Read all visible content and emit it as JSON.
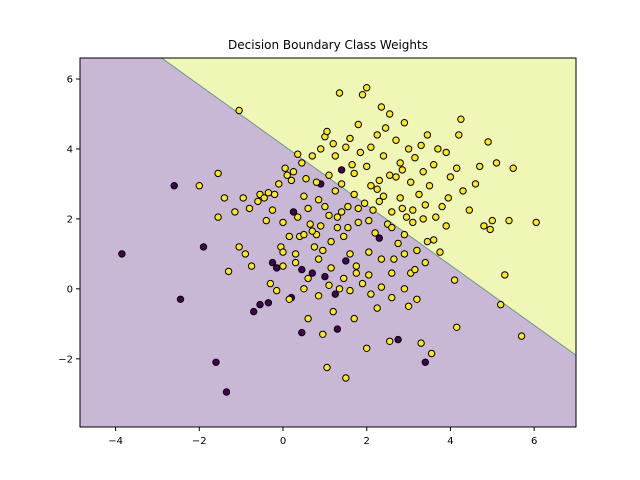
{
  "chart_data": {
    "type": "scatter",
    "title": "Decision Boundary Class Weights",
    "xlabel": "",
    "ylabel": "",
    "xlim": [
      -4.85,
      7.0
    ],
    "ylim": [
      -3.95,
      6.6
    ],
    "x_ticks": [
      -4,
      -2,
      0,
      2,
      4,
      6
    ],
    "y_ticks": [
      -2,
      0,
      2,
      4,
      6
    ],
    "grid": false,
    "legend": "none",
    "decision_boundary": {
      "line": [
        [
          -2.9,
          6.6
        ],
        [
          7.0,
          -1.9
        ]
      ],
      "region_below_color": "#c8b8d6",
      "region_above_color": "#eff6b6",
      "boundary_color": "#6b9a8c"
    },
    "series": [
      {
        "class": 0,
        "color": "#440154",
        "points": [
          [
            -3.85,
            1.0
          ],
          [
            -2.6,
            2.95
          ],
          [
            -2.45,
            -0.3
          ],
          [
            -1.9,
            1.2
          ],
          [
            -1.6,
            -2.1
          ],
          [
            -1.35,
            -2.95
          ],
          [
            -0.7,
            -0.65
          ],
          [
            -0.55,
            -0.45
          ],
          [
            -0.35,
            -0.4
          ],
          [
            -0.25,
            0.75
          ],
          [
            0.2,
            -0.25
          ],
          [
            0.25,
            2.2
          ],
          [
            0.45,
            0.55
          ],
          [
            -0.15,
            0.6
          ],
          [
            0.45,
            -1.25
          ],
          [
            0.7,
            0.45
          ],
          [
            0.9,
            3.0
          ],
          [
            1.0,
            0.35
          ],
          [
            1.3,
            -1.15
          ],
          [
            1.4,
            3.4
          ],
          [
            1.5,
            0.8
          ],
          [
            2.3,
            1.45
          ],
          [
            2.75,
            -1.45
          ],
          [
            3.4,
            -2.1
          ],
          [
            1.25,
            -0.15
          ]
        ]
      },
      {
        "class": 1,
        "color": "#fde725",
        "points": [
          [
            -1.05,
            5.1
          ],
          [
            -1.55,
            3.3
          ],
          [
            -2.0,
            2.95
          ],
          [
            -1.55,
            2.05
          ],
          [
            -1.4,
            2.6
          ],
          [
            -1.3,
            0.5
          ],
          [
            -1.15,
            2.2
          ],
          [
            -1.05,
            1.2
          ],
          [
            -0.95,
            2.6
          ],
          [
            -0.8,
            2.3
          ],
          [
            -0.9,
            1.0
          ],
          [
            -0.75,
            0.65
          ],
          [
            -0.6,
            2.5
          ],
          [
            -0.55,
            2.7
          ],
          [
            -0.45,
            2.6
          ],
          [
            -0.35,
            2.75
          ],
          [
            -0.4,
            1.95
          ],
          [
            -0.25,
            2.25
          ],
          [
            -0.2,
            2.7
          ],
          [
            -0.1,
            3.0
          ],
          [
            -0.05,
            1.2
          ],
          [
            0.0,
            1.05
          ],
          [
            0.05,
            3.45
          ],
          [
            0.1,
            3.25
          ],
          [
            0.15,
            1.5
          ],
          [
            0.2,
            3.1
          ],
          [
            0.25,
            3.35
          ],
          [
            0.3,
            1.0
          ],
          [
            0.35,
            3.85
          ],
          [
            0.4,
            1.5
          ],
          [
            0.45,
            3.6
          ],
          [
            0.5,
            1.55
          ],
          [
            0.55,
            3.15
          ],
          [
            0.6,
            2.3
          ],
          [
            0.65,
            1.85
          ],
          [
            0.7,
            3.8
          ],
          [
            0.75,
            1.2
          ],
          [
            0.8,
            1.55
          ],
          [
            0.85,
            2.55
          ],
          [
            0.9,
            1.8
          ],
          [
            0.95,
            1.1
          ],
          [
            1.0,
            4.35
          ],
          [
            1.05,
            4.5
          ],
          [
            1.1,
            2.1
          ],
          [
            1.15,
            1.35
          ],
          [
            1.2,
            4.15
          ],
          [
            1.25,
            2.8
          ],
          [
            1.3,
            1.75
          ],
          [
            1.35,
            5.6
          ],
          [
            1.4,
            2.2
          ],
          [
            1.45,
            1.5
          ],
          [
            1.5,
            4.05
          ],
          [
            1.55,
            2.35
          ],
          [
            1.6,
            1.0
          ],
          [
            1.65,
            3.55
          ],
          [
            1.7,
            2.7
          ],
          [
            1.75,
            0.65
          ],
          [
            1.8,
            1.9
          ],
          [
            1.85,
            3.9
          ],
          [
            1.9,
            5.55
          ],
          [
            1.95,
            2.45
          ],
          [
            2.0,
            5.75
          ],
          [
            2.05,
            0.4
          ],
          [
            2.1,
            2.95
          ],
          [
            2.15,
            2.25
          ],
          [
            2.2,
            1.6
          ],
          [
            2.25,
            4.4
          ],
          [
            2.3,
            3.1
          ],
          [
            2.35,
            5.2
          ],
          [
            2.4,
            2.65
          ],
          [
            2.45,
            4.6
          ],
          [
            2.5,
            1.85
          ],
          [
            2.55,
            5.0
          ],
          [
            2.6,
            2.2
          ],
          [
            2.65,
            0.85
          ],
          [
            2.7,
            3.2
          ],
          [
            2.75,
            1.3
          ],
          [
            2.8,
            2.6
          ],
          [
            2.85,
            3.4
          ],
          [
            2.9,
            1.55
          ],
          [
            2.95,
            2.05
          ],
          [
            3.0,
            4.0
          ],
          [
            3.05,
            0.45
          ],
          [
            3.1,
            2.25
          ],
          [
            3.15,
            3.75
          ],
          [
            3.2,
            1.1
          ],
          [
            3.25,
            2.7
          ],
          [
            3.3,
            4.1
          ],
          [
            3.35,
            2.0
          ],
          [
            3.4,
            0.75
          ],
          [
            3.5,
            2.95
          ],
          [
            3.6,
            1.4
          ],
          [
            3.7,
            4.0
          ],
          [
            3.8,
            2.35
          ],
          [
            3.9,
            1.8
          ],
          [
            4.0,
            3.2
          ],
          [
            4.1,
            0.25
          ],
          [
            4.2,
            4.4
          ],
          [
            4.25,
            4.85
          ],
          [
            4.3,
            2.8
          ],
          [
            4.45,
            2.25
          ],
          [
            4.6,
            3.0
          ],
          [
            4.7,
            3.5
          ],
          [
            4.8,
            1.8
          ],
          [
            4.9,
            4.2
          ],
          [
            5.0,
            1.95
          ],
          [
            5.1,
            3.6
          ],
          [
            5.2,
            -0.45
          ],
          [
            5.3,
            0.4
          ],
          [
            5.5,
            3.45
          ],
          [
            5.7,
            -1.35
          ],
          [
            6.05,
            1.9
          ],
          [
            5.4,
            1.95
          ],
          [
            4.95,
            1.7
          ],
          [
            3.55,
            -1.85
          ],
          [
            3.3,
            -1.55
          ],
          [
            2.55,
            -1.5
          ],
          [
            2.0,
            -1.7
          ],
          [
            1.5,
            -2.55
          ],
          [
            1.05,
            -2.25
          ],
          [
            4.15,
            -1.1
          ],
          [
            0.95,
            -1.3
          ],
          [
            0.15,
            -0.3
          ],
          [
            -0.3,
            0.15
          ],
          [
            0.5,
            0.0
          ],
          [
            0.85,
            -0.2
          ],
          [
            1.1,
            0.1
          ],
          [
            1.35,
            0.0
          ],
          [
            1.6,
            -0.05
          ],
          [
            1.9,
            0.15
          ],
          [
            2.1,
            -0.15
          ],
          [
            2.35,
            0.05
          ],
          [
            2.6,
            -0.25
          ],
          [
            2.9,
            0.0
          ],
          [
            3.2,
            -0.3
          ],
          [
            1.7,
            -0.85
          ],
          [
            2.25,
            -0.55
          ],
          [
            3.0,
            -0.5
          ],
          [
            0.6,
            -0.85
          ],
          [
            1.2,
            -0.65
          ],
          [
            -0.15,
            -0.05
          ],
          [
            0.0,
            0.65
          ],
          [
            0.3,
            0.75
          ],
          [
            0.6,
            0.3
          ],
          [
            0.85,
            0.85
          ],
          [
            1.15,
            0.6
          ],
          [
            1.45,
            0.3
          ],
          [
            1.75,
            0.45
          ],
          [
            2.05,
            1.05
          ],
          [
            2.35,
            0.85
          ],
          [
            2.6,
            0.45
          ],
          [
            2.9,
            1.0
          ],
          [
            3.15,
            0.55
          ],
          [
            3.45,
            1.35
          ],
          [
            3.75,
            1.05
          ],
          [
            0.0,
            1.9
          ],
          [
            0.35,
            2.05
          ],
          [
            0.7,
            1.65
          ],
          [
            1.0,
            2.35
          ],
          [
            1.3,
            2.05
          ],
          [
            1.55,
            1.75
          ],
          [
            1.8,
            2.3
          ],
          [
            2.05,
            1.95
          ],
          [
            2.3,
            2.5
          ],
          [
            2.6,
            1.75
          ],
          [
            2.85,
            2.3
          ],
          [
            3.1,
            1.9
          ],
          [
            3.4,
            2.4
          ],
          [
            3.65,
            2.05
          ],
          [
            3.95,
            2.6
          ],
          [
            0.5,
            2.65
          ],
          [
            0.8,
            3.05
          ],
          [
            1.1,
            3.25
          ],
          [
            1.4,
            3.0
          ],
          [
            1.7,
            3.3
          ],
          [
            2.0,
            3.5
          ],
          [
            2.25,
            2.85
          ],
          [
            2.55,
            3.25
          ],
          [
            2.8,
            3.6
          ],
          [
            3.05,
            3.05
          ],
          [
            3.35,
            3.35
          ],
          [
            3.6,
            3.55
          ],
          [
            3.9,
            3.9
          ],
          [
            4.15,
            3.45
          ],
          [
            0.9,
            4.0
          ],
          [
            1.25,
            3.8
          ],
          [
            1.6,
            4.3
          ],
          [
            2.1,
            4.05
          ],
          [
            2.4,
            3.8
          ],
          [
            2.7,
            4.25
          ],
          [
            3.45,
            4.4
          ],
          [
            1.8,
            4.7
          ],
          [
            2.9,
            4.75
          ]
        ]
      }
    ]
  }
}
